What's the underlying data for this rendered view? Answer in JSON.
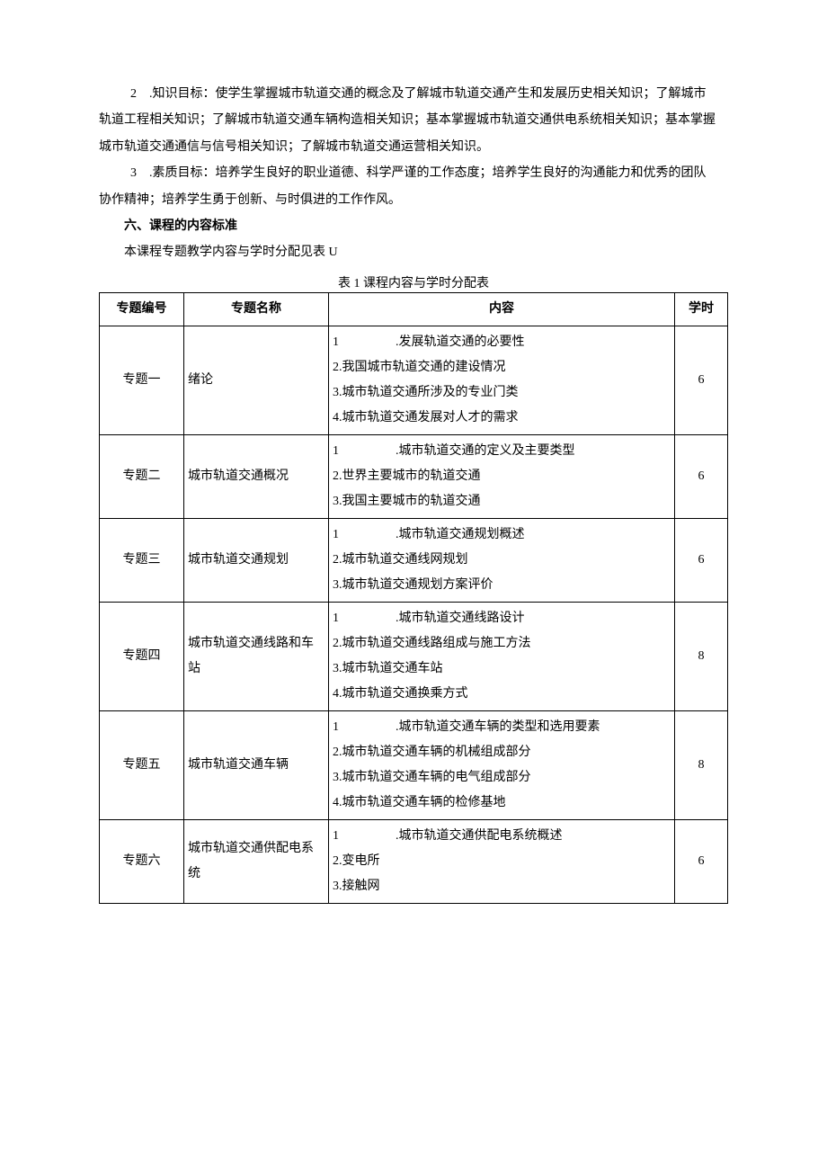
{
  "paragraphs": {
    "p2_line1": "2 .知识目标：使学生掌握城市轨道交通的概念及了解城市轨道交通产生和发展历史相关知识；了解城市",
    "p2_line2": "轨道工程相关知识；了解城市轨道交通车辆构造相关知识；基本掌握城市轨道交通供电系统相关知识；基本掌握",
    "p2_line3": "城市轨道交通通信与信号相关知识；了解城市轨道交通运营相关知识。",
    "p3_line1": "3 .素质目标：培养学生良好的职业道德、科学严谨的工作态度；培养学生良好的沟通能力和优秀的团队",
    "p3_line2": "协作精神；培养学生勇于创新、与时俱进的工作作风。",
    "heading6": "六、课程的内容标准",
    "body1": "本课程专题教学内容与学时分配见表 U",
    "table_caption": "表 1 课程内容与学时分配表"
  },
  "table": {
    "headers": {
      "id": "专题编号",
      "name": "专题名称",
      "content": "内容",
      "hours": "学时"
    },
    "rows": [
      {
        "id": "专题一",
        "name": "绪论",
        "content_first": ".发展轨道交通的必要性",
        "content_rest": [
          "2.我国城市轨道交通的建设情况",
          "3.城市轨道交通所涉及的专业门类",
          "4.城市轨道交通发展对人才的需求"
        ],
        "hours": "6"
      },
      {
        "id": "专题二",
        "name": "城市轨道交通概况",
        "content_first": ".城市轨道交通的定义及主要类型",
        "content_rest": [
          "2.世界主要城市的轨道交通",
          "3.我国主要城市的轨道交通"
        ],
        "hours": "6"
      },
      {
        "id": "专题三",
        "name": "城市轨道交通规划",
        "content_first": ".城市轨道交通规划概述",
        "content_rest": [
          "2.城市轨道交通线网规划",
          "3.城市轨道交通规划方案评价"
        ],
        "hours": "6"
      },
      {
        "id": "专题四",
        "name": "城市轨道交通线路和车站",
        "content_first": ".城市轨道交通线路设计",
        "content_rest": [
          "2.城市轨道交通线路组成与施工方法",
          "3.城市轨道交通车站",
          "4.城市轨道交通换乘方式"
        ],
        "hours": "8"
      },
      {
        "id": "专题五",
        "name": "城市轨道交通车辆",
        "content_first": ".城市轨道交通车辆的类型和选用要素",
        "content_rest": [
          "2.城市轨道交通车辆的机械组成部分",
          "3.城市轨道交通车辆的电气组成部分",
          "4.城市轨道交通车辆的检修基地"
        ],
        "hours": "8"
      },
      {
        "id": "专题六",
        "name": "城市轨道交通供配电系统",
        "content_first": ".城市轨道交通供配电系统概述",
        "content_rest": [
          "2.变电所",
          "3.接触网"
        ],
        "hours": "6"
      }
    ]
  }
}
